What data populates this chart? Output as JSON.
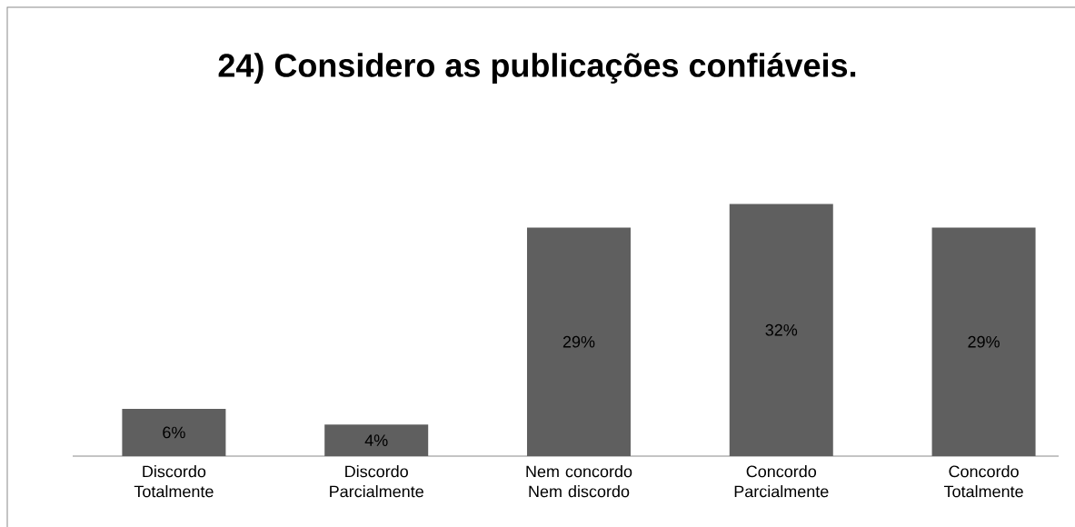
{
  "chart_data": {
    "type": "bar",
    "title": "24) Considero as publicações confiáveis.",
    "categories": [
      "Discordo Totalmente",
      "Discordo Parcialmente",
      "Nem concordo Nem discordo",
      "Concordo Parcialmente",
      "Concordo Totalmente"
    ],
    "values": [
      6,
      4,
      29,
      32,
      29
    ],
    "value_labels": [
      "6%",
      "4%",
      "29%",
      "32%",
      "29%"
    ],
    "color": "#5f5f5f"
  }
}
